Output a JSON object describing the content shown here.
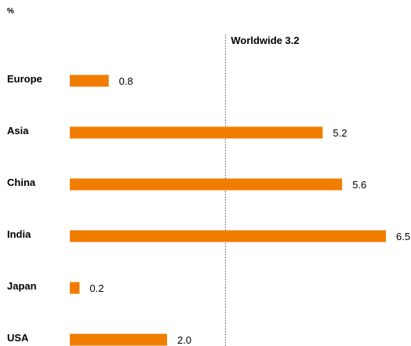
{
  "chart_data": {
    "type": "bar",
    "orientation": "horizontal",
    "unit": "%",
    "categories": [
      "Europe",
      "Asia",
      "China",
      "India",
      "Japan",
      "USA"
    ],
    "values": [
      0.8,
      5.2,
      5.6,
      6.5,
      0.2,
      2.0
    ],
    "value_labels": [
      "0.8",
      "5.2",
      "5.6",
      "6.5",
      "0.2",
      "2.0"
    ],
    "reference_line": {
      "label": "Worldwide 3.2",
      "value": 3.2,
      "style": "dotted"
    },
    "xlim": [
      0,
      6.5
    ],
    "grid": false,
    "bar_color": "#f07d00"
  }
}
